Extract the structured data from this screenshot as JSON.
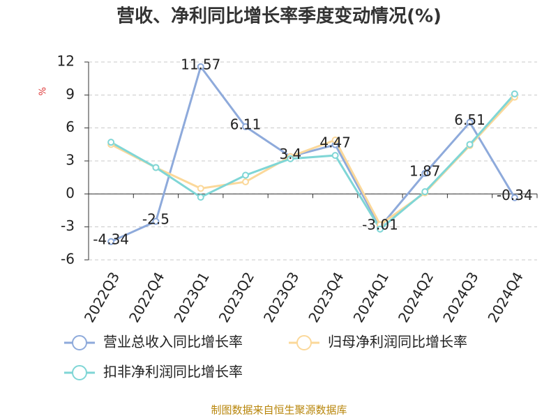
{
  "chart_data": {
    "type": "line",
    "title": "营收、净利同比增长率季度变动情况(%)",
    "y_label": "%",
    "source": "制图数据来自恒生聚源数据库",
    "categories": [
      "2022Q3",
      "2022Q4",
      "2023Q1",
      "2023Q2",
      "2023Q3",
      "2023Q4",
      "2024Q1",
      "2024Q2",
      "2024Q3",
      "2024Q4"
    ],
    "series": [
      {
        "name": "营业总收入同比增长率",
        "color": "#8eaadb",
        "values": [
          -4.34,
          -2.5,
          11.57,
          6.11,
          3.4,
          4.47,
          -3.01,
          1.87,
          6.51,
          -0.34
        ],
        "data_labels": true
      },
      {
        "name": "归母净利润同比增长率",
        "color": "#fbd89a",
        "values": [
          4.5,
          2.4,
          0.5,
          1.1,
          3.4,
          4.9,
          -2.8,
          0.1,
          4.4,
          8.8
        ]
      },
      {
        "name": "扣非净利润同比增长率",
        "color": "#7fd6d6",
        "values": [
          4.7,
          2.4,
          -0.3,
          1.7,
          3.2,
          3.5,
          -3.2,
          0.2,
          4.5,
          9.1
        ]
      }
    ],
    "ylim": [
      -6,
      12
    ],
    "yticks": [
      -6,
      -3,
      0,
      3,
      6,
      9,
      12
    ],
    "grid": true
  }
}
